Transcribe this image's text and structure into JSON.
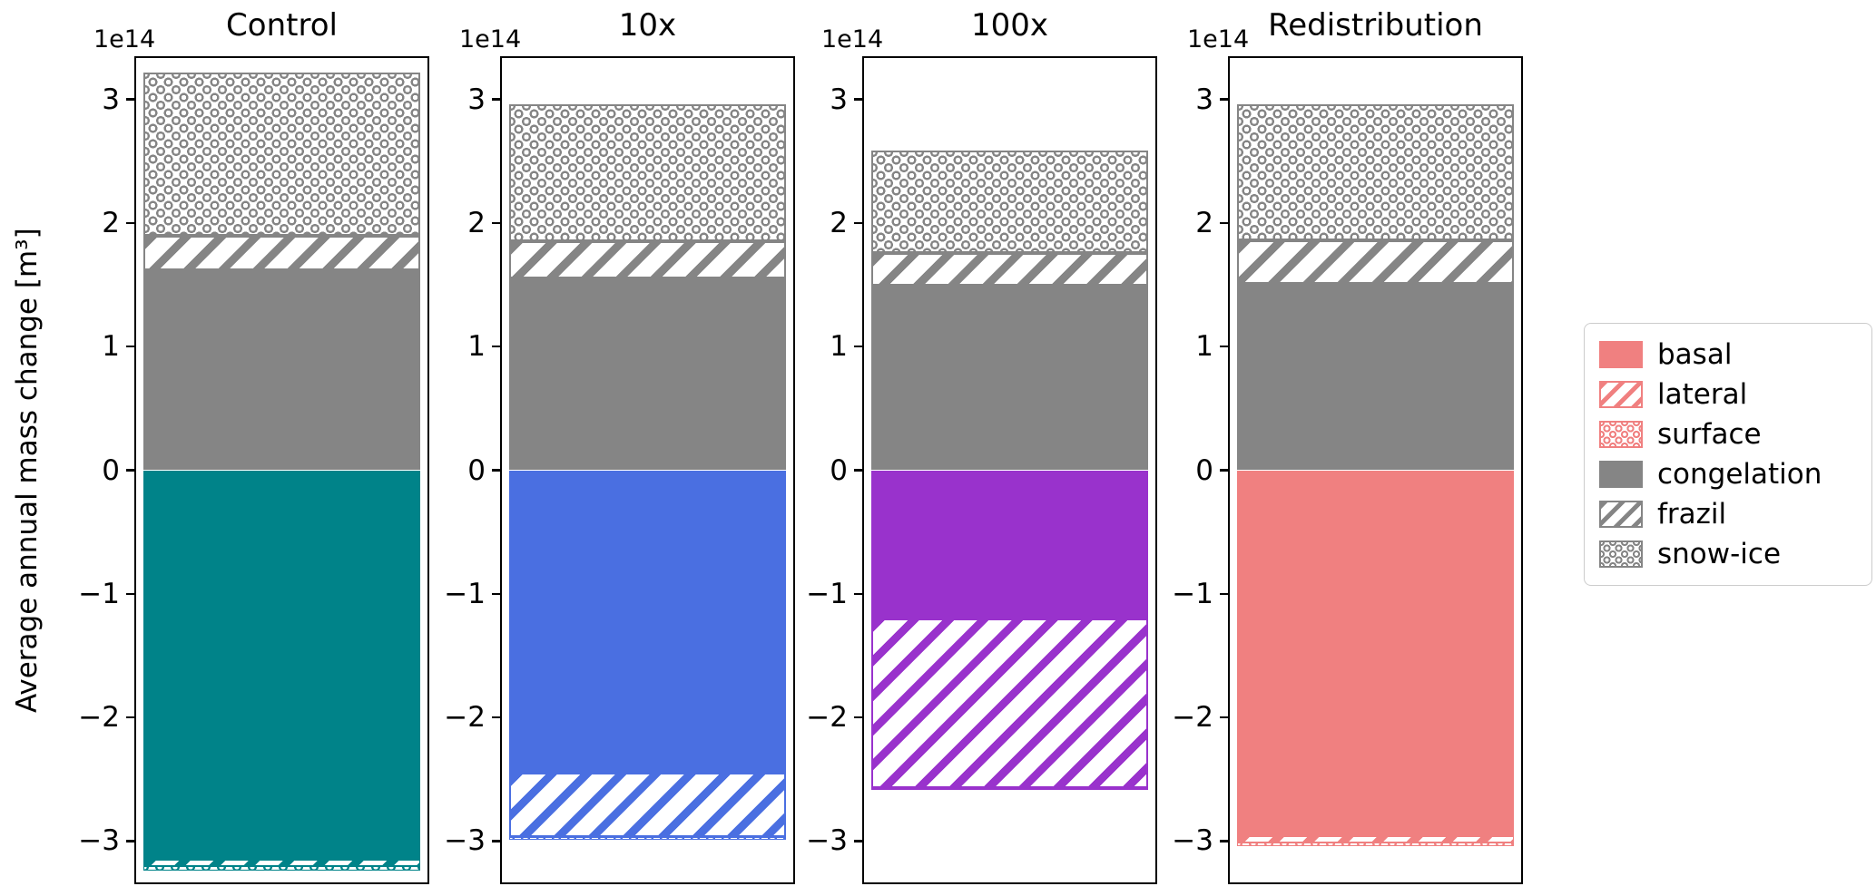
{
  "figure": {
    "background": "#ffffff"
  },
  "chart_data": {
    "type": "bar",
    "stacked": true,
    "orientation": "vertical",
    "ylabel": "Average annual mass change [m³]",
    "scale_note": "1e14",
    "ylim": [
      -3.35,
      3.35
    ],
    "yticks": [
      3,
      2,
      1,
      0,
      -1,
      -2,
      -3
    ],
    "grid": false,
    "legend_position": "right-outside",
    "colors": {
      "gray": "#858585",
      "axis": "#000000"
    },
    "panels": [
      {
        "title": "Control",
        "color": "#008389",
        "segments": [
          {
            "name": "congelation",
            "pattern": "solid",
            "palette": "gray",
            "from": 0,
            "to": 1.62
          },
          {
            "name": "frazil",
            "pattern": "diag",
            "palette": "gray",
            "from": 1.62,
            "to": 1.9
          },
          {
            "name": "snow-ice",
            "pattern": "circles",
            "palette": "gray",
            "from": 1.9,
            "to": 3.22
          },
          {
            "name": "basal",
            "pattern": "solid",
            "palette": "accent",
            "from": 0,
            "to": -3.15
          },
          {
            "name": "lateral",
            "pattern": "diag",
            "palette": "accent",
            "from": -3.15,
            "to": -3.2
          },
          {
            "name": "surface",
            "pattern": "circles",
            "palette": "accent",
            "from": -3.2,
            "to": -3.24
          }
        ]
      },
      {
        "title": "10x",
        "color": "#4a6fe1",
        "segments": [
          {
            "name": "congelation",
            "pattern": "solid",
            "palette": "gray",
            "from": 0,
            "to": 1.55
          },
          {
            "name": "frazil",
            "pattern": "diag",
            "palette": "gray",
            "from": 1.55,
            "to": 1.85
          },
          {
            "name": "snow-ice",
            "pattern": "circles",
            "palette": "gray",
            "from": 1.85,
            "to": 2.96
          },
          {
            "name": "basal",
            "pattern": "solid",
            "palette": "accent",
            "from": 0,
            "to": -2.45
          },
          {
            "name": "lateral",
            "pattern": "diag",
            "palette": "accent",
            "from": -2.45,
            "to": -2.97
          },
          {
            "name": "surface",
            "pattern": "circles",
            "palette": "accent",
            "from": -2.97,
            "to": -2.99
          }
        ]
      },
      {
        "title": "100x",
        "color": "#9932cc",
        "segments": [
          {
            "name": "congelation",
            "pattern": "solid",
            "palette": "gray",
            "from": 0,
            "to": 1.49
          },
          {
            "name": "frazil",
            "pattern": "diag",
            "palette": "gray",
            "from": 1.49,
            "to": 1.76
          },
          {
            "name": "snow-ice",
            "pattern": "circles",
            "palette": "gray",
            "from": 1.76,
            "to": 2.59
          },
          {
            "name": "basal",
            "pattern": "solid",
            "palette": "accent",
            "from": 0,
            "to": -1.2
          },
          {
            "name": "lateral",
            "pattern": "diag",
            "palette": "accent",
            "from": -1.2,
            "to": -2.57
          },
          {
            "name": "surface",
            "pattern": "circles",
            "palette": "accent",
            "from": -2.57,
            "to": -2.59
          }
        ]
      },
      {
        "title": "Redistribution",
        "color": "#f08080",
        "segments": [
          {
            "name": "congelation",
            "pattern": "solid",
            "palette": "gray",
            "from": 0,
            "to": 1.51
          },
          {
            "name": "frazil",
            "pattern": "diag",
            "palette": "gray",
            "from": 1.51,
            "to": 1.86
          },
          {
            "name": "snow-ice",
            "pattern": "circles",
            "palette": "gray",
            "from": 1.86,
            "to": 2.96
          },
          {
            "name": "basal",
            "pattern": "solid",
            "palette": "accent",
            "from": 0,
            "to": -2.96
          },
          {
            "name": "lateral",
            "pattern": "diag",
            "palette": "accent",
            "from": -2.96,
            "to": -3.01
          },
          {
            "name": "surface",
            "pattern": "circles",
            "palette": "accent",
            "from": -3.01,
            "to": -3.04
          }
        ]
      }
    ],
    "legend": {
      "entries": [
        {
          "label": "basal",
          "pattern": "solid",
          "color": "#f08080"
        },
        {
          "label": "lateral",
          "pattern": "diag",
          "color": "#f08080"
        },
        {
          "label": "surface",
          "pattern": "circles",
          "color": "#f08080"
        },
        {
          "label": "congelation",
          "pattern": "solid",
          "color": "#858585"
        },
        {
          "label": "frazil",
          "pattern": "diag",
          "color": "#858585"
        },
        {
          "label": "snow-ice",
          "pattern": "circles",
          "color": "#858585"
        }
      ]
    }
  }
}
